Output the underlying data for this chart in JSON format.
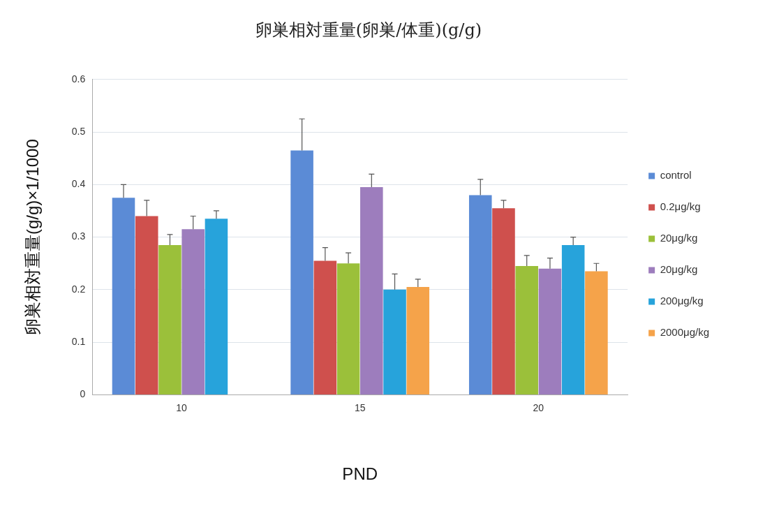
{
  "chart_data": {
    "type": "bar",
    "title": "卵巣相対重量(卵巣/体重)(g/g)",
    "xlabel": "PND",
    "ylabel": "卵巣相対重量(g/g)×1/1000",
    "categories": [
      "10",
      "15",
      "20"
    ],
    "series": [
      {
        "name": "control",
        "color": "#5b8bd6",
        "values": [
          0.375,
          0.465,
          0.38
        ],
        "errors": [
          [
            0.375,
            0.4
          ],
          [
            0.465,
            0.525
          ],
          [
            0.38,
            0.41
          ]
        ]
      },
      {
        "name": "0.2μg/kg",
        "color": "#cf504d",
        "values": [
          0.34,
          0.255,
          0.355
        ],
        "errors": [
          [
            0.34,
            0.37
          ],
          [
            0.255,
            0.28
          ],
          [
            0.355,
            0.37
          ]
        ]
      },
      {
        "name": "20μg/kg",
        "color": "#9bc03a",
        "values": [
          0.285,
          0.25,
          0.245
        ],
        "errors": [
          [
            0.285,
            0.305
          ],
          [
            0.25,
            0.27
          ],
          [
            0.245,
            0.265
          ]
        ]
      },
      {
        "name": "20μg/kg",
        "color": "#9d7dbd",
        "values": [
          0.315,
          0.395,
          0.24
        ],
        "errors": [
          [
            0.315,
            0.34
          ],
          [
            0.395,
            0.42
          ],
          [
            0.24,
            0.26
          ]
        ]
      },
      {
        "name": "200μg/kg",
        "color": "#27a3db",
        "values": [
          0.335,
          0.2,
          0.285
        ],
        "errors": [
          [
            0.335,
            0.35
          ],
          [
            0.2,
            0.23
          ],
          [
            0.285,
            0.3
          ]
        ]
      },
      {
        "name": "2000μg/kg",
        "color": "#f5a34a",
        "values": [
          null,
          0.205,
          0.235
        ],
        "errors": [
          null,
          [
            0.205,
            0.22
          ],
          [
            0.235,
            0.25
          ]
        ]
      }
    ],
    "ylim": [
      0,
      0.6
    ],
    "yticks": [
      0,
      0.1,
      0.2,
      0.3,
      0.4,
      0.5,
      0.6
    ],
    "grid": "y",
    "legend": "right"
  }
}
